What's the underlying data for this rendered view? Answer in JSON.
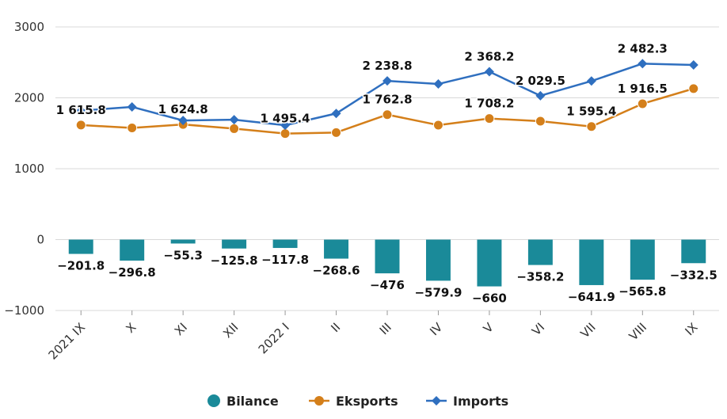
{
  "chart_data": {
    "type": "bar+line",
    "categories": [
      "2021 IX",
      "X",
      "XI",
      "XII",
      "2022 I",
      "II",
      "III",
      "IV",
      "V",
      "VI",
      "VII",
      "VIII",
      "IX"
    ],
    "ylim": [
      -1000,
      3000
    ],
    "yticks": [
      -1000,
      0,
      1000,
      2000,
      3000
    ],
    "ytick_labels": [
      "−1000",
      "0",
      "1000",
      "2000",
      "3000"
    ],
    "grid": true,
    "legend_position": "bottom-center",
    "series": [
      {
        "name": "Bilance",
        "type": "bar",
        "color": "#1a8a99",
        "values": [
          -201.8,
          -296.8,
          -55.3,
          -125.8,
          -117.8,
          -268.6,
          -476,
          -579.9,
          -660,
          -358.2,
          -641.9,
          -565.8,
          -332.5
        ],
        "labels": [
          "−201.8",
          "−296.8",
          "−55.3",
          "−125.8",
          "−117.8",
          "−268.6",
          "−476",
          "−579.9",
          "−660",
          "−358.2",
          "−641.9",
          "−565.8",
          "−332.5"
        ]
      },
      {
        "name": "Eksports",
        "type": "line",
        "color": "#d47f1a",
        "marker": "circle",
        "values": [
          1615.8,
          1575,
          1624.8,
          1565,
          1495.4,
          1510,
          1762.8,
          1615,
          1708.2,
          1670,
          1595.4,
          1916.5,
          2130
        ],
        "labels": [
          "1 615.8",
          "",
          "1 624.8",
          "",
          "1 495.4",
          "",
          "1 762.8",
          "",
          "1 708.2",
          "",
          "1 595.4",
          "1 916.5",
          ""
        ]
      },
      {
        "name": "Imports",
        "type": "line",
        "color": "#2f6fbf",
        "marker": "diamond",
        "values": [
          1818,
          1872,
          1680,
          1691,
          1613,
          1779,
          2238.8,
          2195,
          2368.2,
          2029.5,
          2237,
          2482.3,
          2463
        ],
        "labels": [
          "",
          "",
          "",
          "",
          "",
          "",
          "2 238.8",
          "",
          "2 368.2",
          "2 029.5",
          "",
          "2 482.3",
          ""
        ]
      }
    ]
  }
}
